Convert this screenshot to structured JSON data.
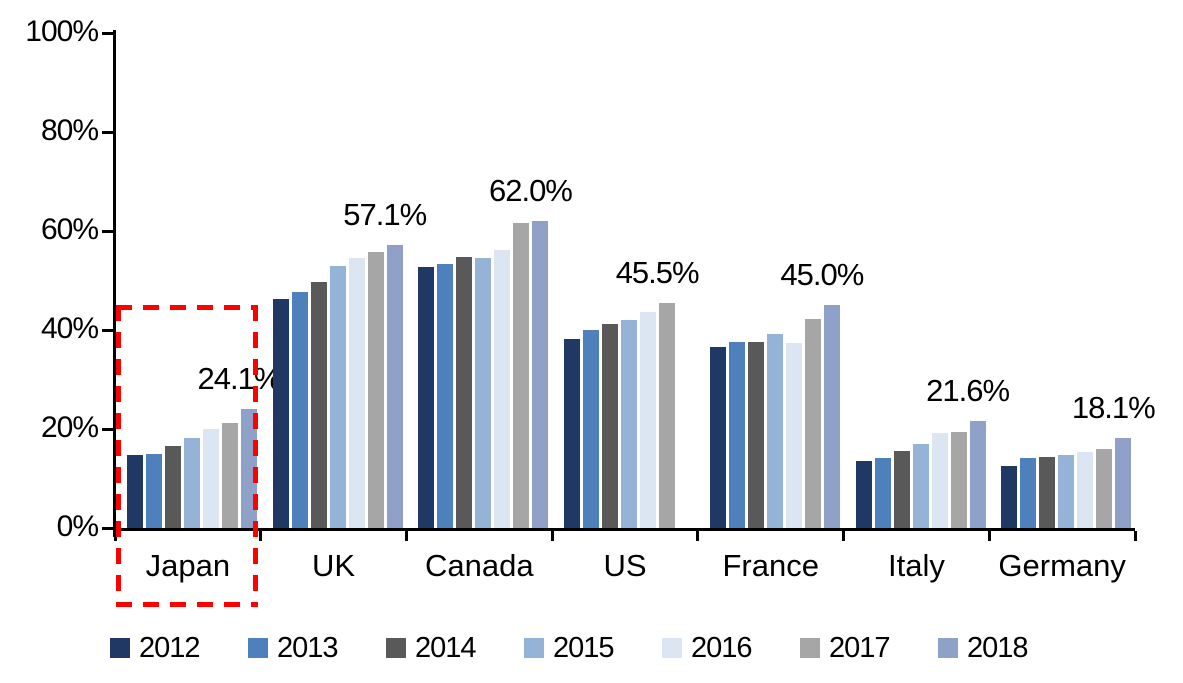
{
  "chart_data": {
    "type": "bar",
    "title": "",
    "categories": [
      "Japan",
      "UK",
      "Canada",
      "US",
      "France",
      "Italy",
      "Germany"
    ],
    "series": [
      {
        "name": "2012",
        "color": "#1F3864",
        "values": [
          14.8,
          46.3,
          52.8,
          38.2,
          36.5,
          13.5,
          12.5
        ]
      },
      {
        "name": "2013",
        "color": "#4E80BC",
        "values": [
          15.0,
          47.7,
          53.3,
          40.0,
          37.5,
          14.2,
          14.1
        ]
      },
      {
        "name": "2014",
        "color": "#595959",
        "values": [
          16.6,
          49.7,
          54.8,
          41.2,
          37.5,
          15.5,
          14.4
        ]
      },
      {
        "name": "2015",
        "color": "#95B3D7",
        "values": [
          18.1,
          53.0,
          54.5,
          42.1,
          39.2,
          17.0,
          14.7
        ]
      },
      {
        "name": "2016",
        "color": "#DCE6F2",
        "values": [
          20.1,
          54.5,
          56.2,
          43.7,
          37.3,
          19.2,
          15.4
        ]
      },
      {
        "name": "2017",
        "color": "#A6A6A6",
        "values": [
          21.3,
          55.8,
          61.6,
          45.5,
          42.3,
          19.4,
          15.9
        ]
      },
      {
        "name": "2018",
        "color": "#8FA0C9",
        "values": [
          24.1,
          57.1,
          62.0,
          null,
          45.0,
          21.6,
          18.1
        ]
      }
    ],
    "data_labels": [
      "24.1%",
      "57.1%",
      "62.0%",
      "45.5%",
      "45.0%",
      "21.6%",
      "18.1%"
    ],
    "y_ticks": [
      "0%",
      "20%",
      "40%",
      "60%",
      "80%",
      "100%"
    ],
    "ylim": [
      0,
      100
    ],
    "grid": false,
    "legend_position": "bottom",
    "axis_color": "#000000",
    "annotation": {
      "type": "dashed-box",
      "target": "Japan",
      "color": "#FF0000"
    }
  }
}
